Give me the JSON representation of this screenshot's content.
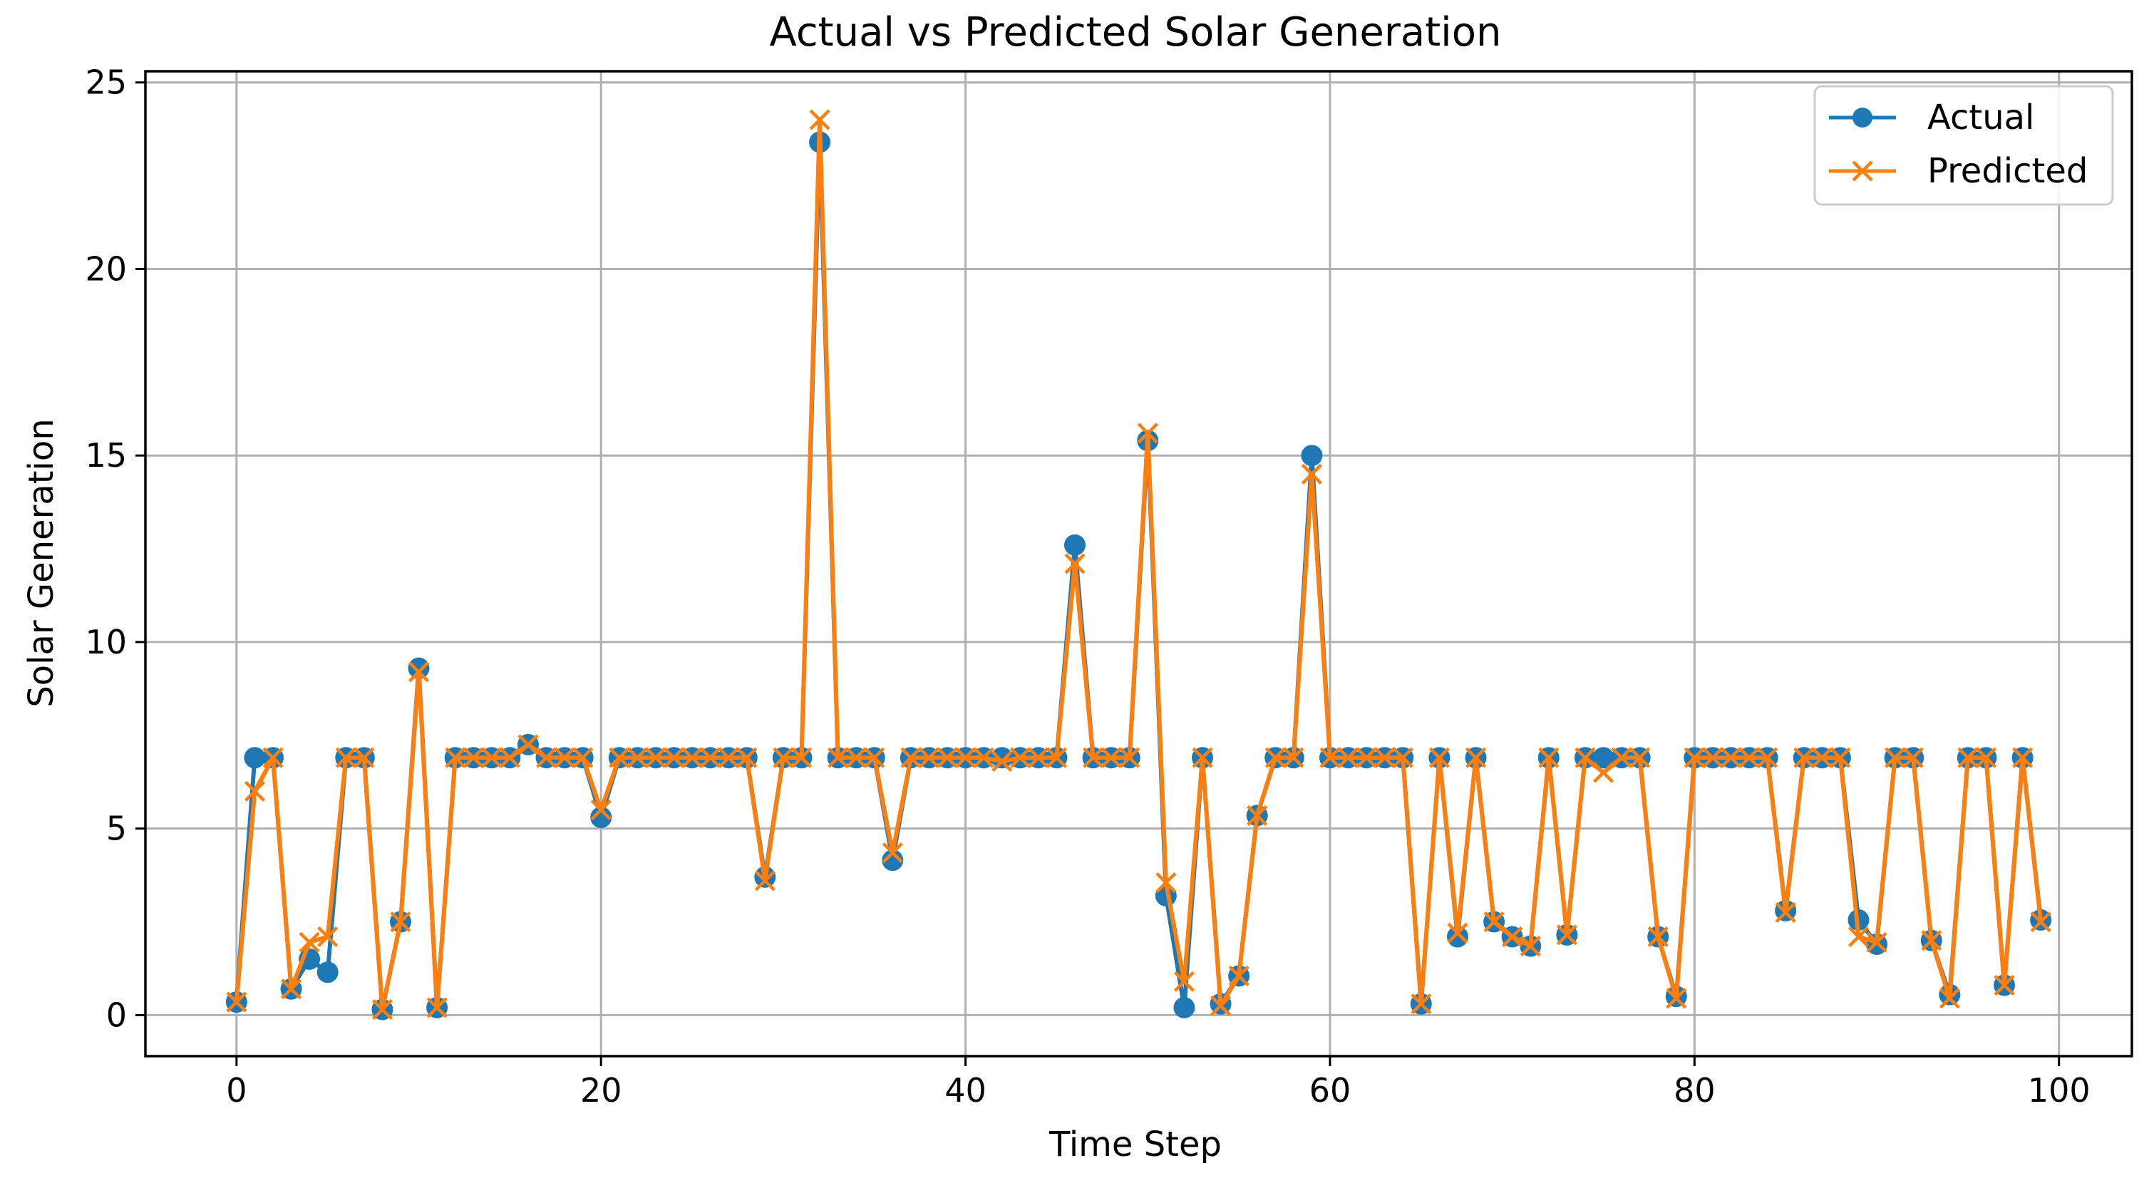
{
  "chart_data": {
    "type": "line",
    "title": "Actual vs Predicted Solar Generation",
    "xlabel": "Time Step",
    "ylabel": "Solar Generation",
    "xlim": [
      -5,
      104
    ],
    "ylim": [
      -1.1,
      25.3
    ],
    "xticks": [
      0,
      20,
      40,
      60,
      80,
      100
    ],
    "yticks": [
      0,
      5,
      10,
      15,
      20,
      25
    ],
    "xtick_labels": [
      "0",
      "20",
      "40",
      "60",
      "80",
      "100"
    ],
    "ytick_labels": [
      "0",
      "5",
      "10",
      "15",
      "20",
      "25"
    ],
    "grid": true,
    "legend_position": "top-right",
    "x": [
      0,
      1,
      2,
      3,
      4,
      5,
      6,
      7,
      8,
      9,
      10,
      11,
      12,
      13,
      14,
      15,
      16,
      17,
      18,
      19,
      20,
      21,
      22,
      23,
      24,
      25,
      26,
      27,
      28,
      29,
      30,
      31,
      32,
      33,
      34,
      35,
      36,
      37,
      38,
      39,
      40,
      41,
      42,
      43,
      44,
      45,
      46,
      47,
      48,
      49,
      50,
      51,
      52,
      53,
      54,
      55,
      56,
      57,
      58,
      59,
      60,
      61,
      62,
      63,
      64,
      65,
      66,
      67,
      68,
      69,
      70,
      71,
      72,
      73,
      74,
      75,
      76,
      77,
      78,
      79,
      80,
      81,
      82,
      83,
      84,
      85,
      86,
      87,
      88,
      89,
      90,
      91,
      92,
      93,
      94,
      95,
      96,
      97,
      98,
      99
    ],
    "series": [
      {
        "name": "Actual",
        "color": "#1f77b4",
        "marker": "circle",
        "values": [
          0.35,
          6.9,
          6.9,
          0.7,
          1.5,
          1.15,
          6.9,
          6.9,
          0.15,
          2.5,
          9.3,
          0.2,
          6.9,
          6.9,
          6.9,
          6.9,
          7.25,
          6.9,
          6.9,
          6.9,
          5.3,
          6.9,
          6.9,
          6.9,
          6.9,
          6.9,
          6.9,
          6.9,
          6.9,
          3.7,
          6.9,
          6.9,
          23.4,
          6.9,
          6.9,
          6.9,
          4.15,
          6.9,
          6.9,
          6.9,
          6.9,
          6.9,
          6.9,
          6.9,
          6.9,
          6.9,
          12.6,
          6.9,
          6.9,
          6.9,
          15.4,
          3.2,
          0.2,
          6.9,
          0.3,
          1.05,
          5.35,
          6.9,
          6.9,
          15.0,
          6.9,
          6.9,
          6.9,
          6.9,
          6.9,
          0.3,
          6.9,
          2.1,
          6.9,
          2.5,
          2.1,
          1.85,
          6.9,
          2.15,
          6.9,
          6.9,
          6.9,
          6.9,
          2.1,
          0.5,
          6.9,
          6.9,
          6.9,
          6.9,
          6.9,
          2.8,
          6.9,
          6.9,
          6.9,
          2.55,
          1.9,
          6.9,
          6.9,
          2.0,
          0.55,
          6.9,
          6.9,
          0.8,
          6.9,
          2.55
        ]
      },
      {
        "name": "Predicted",
        "color": "#ff7f0e",
        "marker": "x",
        "values": [
          0.35,
          6.0,
          6.9,
          0.7,
          1.95,
          2.1,
          6.9,
          6.9,
          0.15,
          2.5,
          9.2,
          0.2,
          6.9,
          6.9,
          6.9,
          6.9,
          7.25,
          6.9,
          6.9,
          6.9,
          5.5,
          6.9,
          6.9,
          6.9,
          6.9,
          6.9,
          6.9,
          6.9,
          6.9,
          3.6,
          6.9,
          6.9,
          24.0,
          6.9,
          6.9,
          6.9,
          4.35,
          6.9,
          6.9,
          6.9,
          6.9,
          6.9,
          6.8,
          6.9,
          6.9,
          6.9,
          12.1,
          6.9,
          6.9,
          6.9,
          15.6,
          3.55,
          0.9,
          6.9,
          0.25,
          1.05,
          5.35,
          6.9,
          6.9,
          14.5,
          6.9,
          6.9,
          6.9,
          6.9,
          6.9,
          0.3,
          6.9,
          2.2,
          6.9,
          2.5,
          2.1,
          1.85,
          6.9,
          2.15,
          6.9,
          6.5,
          6.9,
          6.9,
          2.1,
          0.45,
          6.9,
          6.9,
          6.9,
          6.9,
          6.9,
          2.75,
          6.9,
          6.9,
          6.9,
          2.1,
          1.95,
          6.9,
          6.9,
          2.0,
          0.45,
          6.9,
          6.9,
          0.8,
          6.9,
          2.5
        ]
      }
    ]
  }
}
